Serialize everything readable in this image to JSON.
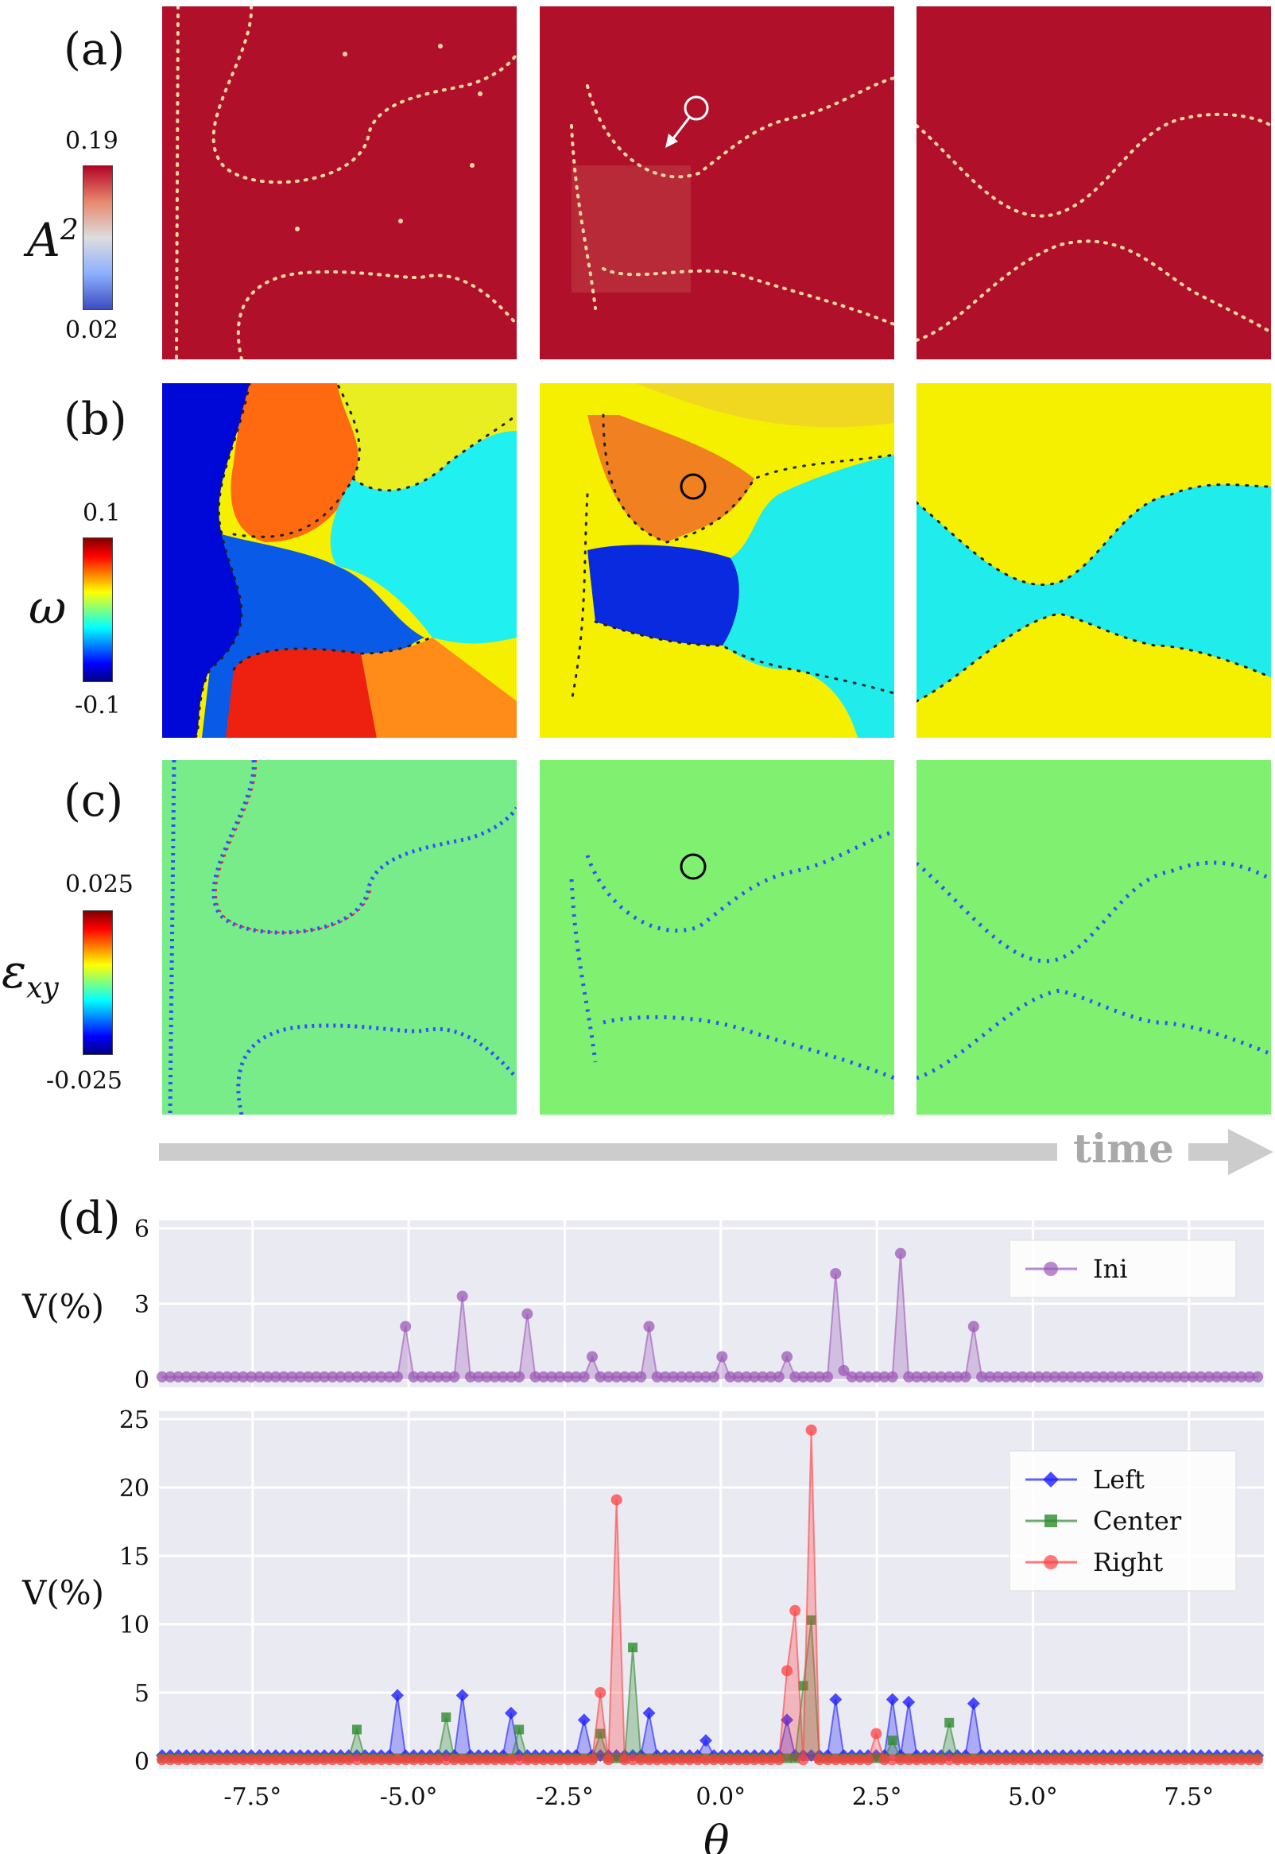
{
  "panels": {
    "a": {
      "label": "(a)",
      "quantity": "A",
      "superscript": "2",
      "cbar_max": "0.19",
      "cbar_min": "0.02"
    },
    "b": {
      "label": "(b)",
      "quantity": "ω",
      "cbar_max": "0.1",
      "cbar_min": "-0.1"
    },
    "c": {
      "label": "(c)",
      "quantity": "ε",
      "subscript": "xy",
      "cbar_max": "0.025",
      "cbar_min": "-0.025"
    },
    "d": {
      "label": "(d)"
    }
  },
  "arrow": {
    "label": "time"
  },
  "colors": {
    "field_red": "#b0102a",
    "field_yellow": "#f5f000",
    "field_cyan": "#10e6e6",
    "field_green": "#80f070",
    "axes_bg": "#eaeaf2",
    "ini": "#9b59b6",
    "left": "#1f1fff",
    "center": "#2e8b2e",
    "right": "#ff4040",
    "time_arrow": "#cccccc"
  },
  "chart_data": [
    {
      "type": "area",
      "ylabel": "V(%)",
      "ylim": [
        0,
        6
      ],
      "yticks": [
        "0",
        "3",
        "6"
      ],
      "xlim": [
        -9.0,
        8.7
      ],
      "grid": true,
      "legend_position": "top-right",
      "series": [
        {
          "name": "Ini",
          "marker": "circle",
          "peaks": [
            [
              -5.1,
              2.1
            ],
            [
              -4.2,
              3.3
            ],
            [
              -3.1,
              2.6
            ],
            [
              -2.0,
              0.9
            ],
            [
              -1.1,
              2.1
            ],
            [
              0.0,
              0.9
            ],
            [
              1.0,
              0.9
            ],
            [
              1.9,
              4.2
            ],
            [
              2.0,
              0.35
            ],
            [
              2.9,
              5.0
            ],
            [
              4.0,
              2.1
            ]
          ],
          "baseline": 0.1
        }
      ]
    },
    {
      "type": "area",
      "xlabel": "θ",
      "ylabel": "V(%)",
      "ylim": [
        0,
        25
      ],
      "yticks": [
        "0",
        "5",
        "10",
        "15",
        "20",
        "25"
      ],
      "xlim": [
        -9.0,
        8.7
      ],
      "xticks": [
        "-7.5°",
        "-5.0°",
        "-2.5°",
        "0.0°",
        "2.5°",
        "5.0°",
        "7.5°"
      ],
      "grid": true,
      "legend_position": "top-right",
      "series": [
        {
          "name": "Left",
          "marker": "diamond",
          "peaks": [
            [
              -5.2,
              4.8
            ],
            [
              -4.2,
              4.8
            ],
            [
              -3.3,
              3.5
            ],
            [
              -2.2,
              3.0
            ],
            [
              -1.2,
              3.5
            ],
            [
              -0.3,
              1.5
            ],
            [
              1.0,
              3.0
            ],
            [
              1.9,
              4.5
            ],
            [
              2.8,
              4.5
            ],
            [
              3.0,
              4.3
            ],
            [
              4.0,
              4.2
            ]
          ],
          "baseline": 0.4
        },
        {
          "name": "Center",
          "marker": "square",
          "peaks": [
            [
              -5.8,
              2.3
            ],
            [
              -4.4,
              3.2
            ],
            [
              -3.2,
              2.3
            ],
            [
              -1.4,
              8.3
            ],
            [
              -1.9,
              2.0
            ],
            [
              1.3,
              5.5
            ],
            [
              1.4,
              10.3
            ],
            [
              2.7,
              1.5
            ],
            [
              3.6,
              2.8
            ]
          ],
          "baseline": 0.2
        },
        {
          "name": "Right",
          "marker": "circle",
          "peaks": [
            [
              -1.7,
              19.1
            ],
            [
              -1.9,
              5.0
            ],
            [
              1.4,
              24.2
            ],
            [
              1.2,
              11.0
            ],
            [
              1.0,
              6.6
            ],
            [
              2.5,
              2.0
            ]
          ],
          "baseline": 0.1
        }
      ]
    }
  ]
}
